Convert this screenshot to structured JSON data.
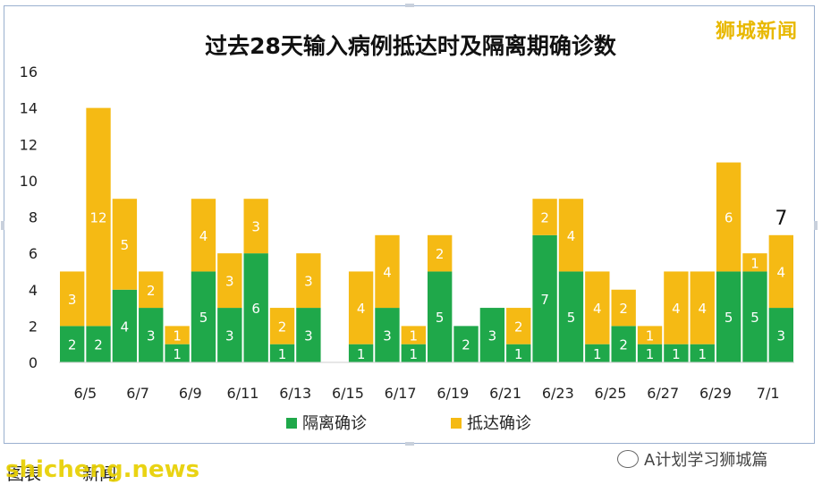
{
  "watermark": "狮城新闻",
  "footer": {
    "left_text": "图表",
    "left_text_2": "新闻",
    "site_overlay": "shicheng.news",
    "brand": "A计划学习狮城篇"
  },
  "colors": {
    "quarantine": "#1fa84a",
    "arrival": "#f5ba14",
    "label_color": "#ffffff"
  },
  "chart_data": {
    "type": "bar",
    "stacked": true,
    "title": "过去28天输入病例抵达时及隔离期确诊数",
    "categories": [
      "6/5",
      "6/6",
      "6/7",
      "6/8",
      "6/9",
      "6/10",
      "6/11",
      "6/12",
      "6/13",
      "6/14",
      "6/15",
      "6/16",
      "6/17",
      "6/18",
      "6/19",
      "6/20",
      "6/21",
      "6/22",
      "6/23",
      "6/24",
      "6/25",
      "6/26",
      "6/27",
      "6/28",
      "6/29",
      "6/30",
      "7/1",
      "7/2"
    ],
    "tick_labels": [
      "6/5",
      "6/7",
      "6/9",
      "6/11",
      "6/13",
      "6/15",
      "6/17",
      "6/19",
      "6/21",
      "6/23",
      "6/25",
      "6/27",
      "6/29",
      "7/1"
    ],
    "y_ticks": [
      "0",
      "2",
      "4",
      "6",
      "8",
      "10",
      "12",
      "14",
      "16"
    ],
    "ylim": [
      0,
      16
    ],
    "series": [
      {
        "name": "隔离确诊",
        "values": [
          2,
          2,
          4,
          3,
          1,
          5,
          3,
          6,
          1,
          3,
          0,
          1,
          3,
          1,
          5,
          2,
          3,
          1,
          7,
          5,
          1,
          2,
          1,
          1,
          1,
          5,
          5,
          3
        ]
      },
      {
        "name": "抵达确诊",
        "values": [
          3,
          12,
          5,
          2,
          1,
          4,
          3,
          3,
          2,
          3,
          0,
          4,
          4,
          1,
          2,
          0,
          0,
          2,
          2,
          4,
          4,
          2,
          1,
          4,
          4,
          6,
          1,
          4
        ]
      }
    ],
    "total_annotation": {
      "category": "7/2",
      "text": "7"
    },
    "legend": "bottom",
    "grid": false
  }
}
